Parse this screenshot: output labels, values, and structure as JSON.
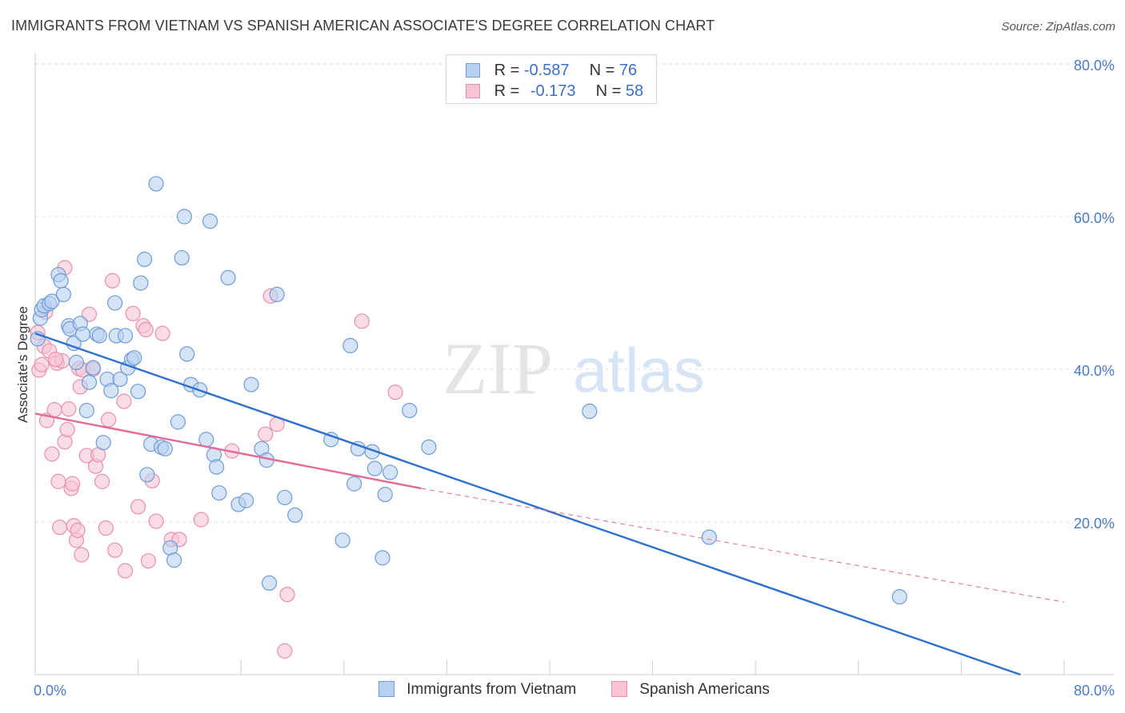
{
  "header": {
    "title": "IMMIGRANTS FROM VIETNAM VS SPANISH AMERICAN ASSOCIATE'S DEGREE CORRELATION CHART",
    "source": "Source: ZipAtlas.com"
  },
  "watermark": {
    "zip": "ZIP",
    "atlas": "atlas"
  },
  "legend_top": [
    {
      "r_label": "R =",
      "r_value": "-0.587",
      "n_label": "N =",
      "n_value": "76"
    },
    {
      "r_label": "R =",
      "r_value": "-0.173",
      "n_label": "N =",
      "n_value": "58"
    }
  ],
  "colors": {
    "blue_fill": "#b8d0f0",
    "blue_stroke": "#6f9bd8",
    "blue_line": "#2f6fcf",
    "pink_fill": "#f7c4d4",
    "pink_stroke": "#e890aa",
    "pink_line": "#e36a94",
    "grid": "#e2e2e2",
    "axis_text": "#4a7bc8"
  },
  "chart_data": {
    "type": "scatter",
    "title": "IMMIGRANTS FROM VIETNAM VS SPANISH AMERICAN ASSOCIATE'S DEGREE CORRELATION CHART",
    "xlabel": "",
    "ylabel": "Associate's Degree",
    "xlim": [
      0,
      80
    ],
    "ylim": [
      0,
      80
    ],
    "x_tick_labels": [
      "0.0%",
      "80.0%"
    ],
    "y_ticks": [
      20,
      40,
      60,
      80
    ],
    "y_tick_labels": [
      "20.0%",
      "40.0%",
      "60.0%",
      "80.0%"
    ],
    "grid": true,
    "legend_placement": "bottom",
    "series": [
      {
        "name": "Immigrants from Vietnam",
        "color": "#b8d0f0",
        "trend": {
          "x": [
            0,
            76.6
          ],
          "y": [
            44.7,
            0
          ],
          "dashed_beyond": null
        },
        "points": [
          [
            0.2,
            44.0
          ],
          [
            0.4,
            46.7
          ],
          [
            0.5,
            47.8
          ],
          [
            0.7,
            48.3
          ],
          [
            1.1,
            48.6
          ],
          [
            1.3,
            48.9
          ],
          [
            1.8,
            52.4
          ],
          [
            2.0,
            51.6
          ],
          [
            2.2,
            49.8
          ],
          [
            2.6,
            45.7
          ],
          [
            2.7,
            45.3
          ],
          [
            3.0,
            43.4
          ],
          [
            3.2,
            40.9
          ],
          [
            3.5,
            46.0
          ],
          [
            3.7,
            44.6
          ],
          [
            4.0,
            34.6
          ],
          [
            4.2,
            38.3
          ],
          [
            4.5,
            40.2
          ],
          [
            4.8,
            44.6
          ],
          [
            5.0,
            44.4
          ],
          [
            5.3,
            30.4
          ],
          [
            5.6,
            38.7
          ],
          [
            5.9,
            37.2
          ],
          [
            6.2,
            48.7
          ],
          [
            6.3,
            44.4
          ],
          [
            6.6,
            38.7
          ],
          [
            7.0,
            44.4
          ],
          [
            7.2,
            40.2
          ],
          [
            7.5,
            41.3
          ],
          [
            7.7,
            41.5
          ],
          [
            8.0,
            37.1
          ],
          [
            8.2,
            51.3
          ],
          [
            8.5,
            54.4
          ],
          [
            8.7,
            26.2
          ],
          [
            9.0,
            30.2
          ],
          [
            9.4,
            64.3
          ],
          [
            9.8,
            29.8
          ],
          [
            10.1,
            29.6
          ],
          [
            10.5,
            16.6
          ],
          [
            10.8,
            15.0
          ],
          [
            11.1,
            33.1
          ],
          [
            11.4,
            54.6
          ],
          [
            11.6,
            60.0
          ],
          [
            11.8,
            42.0
          ],
          [
            12.1,
            38.0
          ],
          [
            12.8,
            37.3
          ],
          [
            13.3,
            30.8
          ],
          [
            13.6,
            59.4
          ],
          [
            13.9,
            28.8
          ],
          [
            14.1,
            27.2
          ],
          [
            14.3,
            23.8
          ],
          [
            15.0,
            52.0
          ],
          [
            15.8,
            22.3
          ],
          [
            16.4,
            22.8
          ],
          [
            16.8,
            38.0
          ],
          [
            17.6,
            29.6
          ],
          [
            18.0,
            28.1
          ],
          [
            18.2,
            12.0
          ],
          [
            18.8,
            49.8
          ],
          [
            19.4,
            23.2
          ],
          [
            20.2,
            20.9
          ],
          [
            23.0,
            30.8
          ],
          [
            23.9,
            17.6
          ],
          [
            24.5,
            43.1
          ],
          [
            24.8,
            25.0
          ],
          [
            25.1,
            29.6
          ],
          [
            26.4,
            27.0
          ],
          [
            26.2,
            29.2
          ],
          [
            27.0,
            15.3
          ],
          [
            27.2,
            23.6
          ],
          [
            27.6,
            26.5
          ],
          [
            29.1,
            34.6
          ],
          [
            30.6,
            29.8
          ],
          [
            43.1,
            34.5
          ],
          [
            52.4,
            18.0
          ],
          [
            67.2,
            10.2
          ]
        ]
      },
      {
        "name": "Spanish Americans",
        "color": "#f7c4d4",
        "trend": {
          "x": [
            0,
            30.0
          ],
          "y": [
            34.2,
            24.4
          ],
          "dashed_beyond": [
            80,
            9.5
          ]
        },
        "points": [
          [
            0.2,
            44.8
          ],
          [
            0.3,
            39.9
          ],
          [
            0.5,
            40.6
          ],
          [
            0.7,
            43.0
          ],
          [
            0.9,
            33.3
          ],
          [
            1.1,
            42.4
          ],
          [
            1.3,
            28.9
          ],
          [
            1.5,
            34.7
          ],
          [
            1.7,
            40.8
          ],
          [
            1.8,
            25.3
          ],
          [
            1.9,
            19.3
          ],
          [
            2.1,
            41.1
          ],
          [
            2.3,
            30.5
          ],
          [
            2.3,
            53.3
          ],
          [
            2.5,
            32.1
          ],
          [
            2.6,
            34.8
          ],
          [
            2.8,
            24.4
          ],
          [
            2.9,
            25.0
          ],
          [
            3.0,
            19.5
          ],
          [
            3.2,
            17.6
          ],
          [
            3.3,
            18.9
          ],
          [
            3.4,
            40.1
          ],
          [
            3.5,
            37.7
          ],
          [
            3.6,
            15.7
          ],
          [
            3.7,
            39.9
          ],
          [
            4.0,
            28.7
          ],
          [
            4.2,
            47.2
          ],
          [
            4.5,
            40.0
          ],
          [
            4.7,
            27.3
          ],
          [
            4.9,
            28.8
          ],
          [
            5.2,
            25.3
          ],
          [
            5.5,
            19.2
          ],
          [
            5.7,
            33.4
          ],
          [
            6.0,
            51.6
          ],
          [
            6.2,
            16.3
          ],
          [
            6.9,
            35.8
          ],
          [
            7.0,
            13.6
          ],
          [
            7.6,
            47.3
          ],
          [
            8.0,
            22.0
          ],
          [
            8.4,
            45.7
          ],
          [
            8.6,
            45.2
          ],
          [
            8.8,
            14.9
          ],
          [
            9.1,
            25.4
          ],
          [
            9.4,
            20.1
          ],
          [
            9.9,
            44.7
          ],
          [
            10.6,
            17.7
          ],
          [
            11.2,
            17.7
          ],
          [
            12.9,
            20.3
          ],
          [
            15.3,
            29.3
          ],
          [
            17.9,
            31.5
          ],
          [
            18.3,
            49.6
          ],
          [
            18.8,
            32.8
          ],
          [
            19.6,
            10.5
          ],
          [
            19.4,
            3.1
          ],
          [
            25.4,
            46.3
          ],
          [
            28.0,
            37.0
          ],
          [
            0.8,
            47.5
          ],
          [
            1.6,
            41.3
          ]
        ]
      }
    ]
  },
  "legend_bottom": [
    {
      "label": "Immigrants from Vietnam"
    },
    {
      "label": "Spanish Americans"
    }
  ]
}
